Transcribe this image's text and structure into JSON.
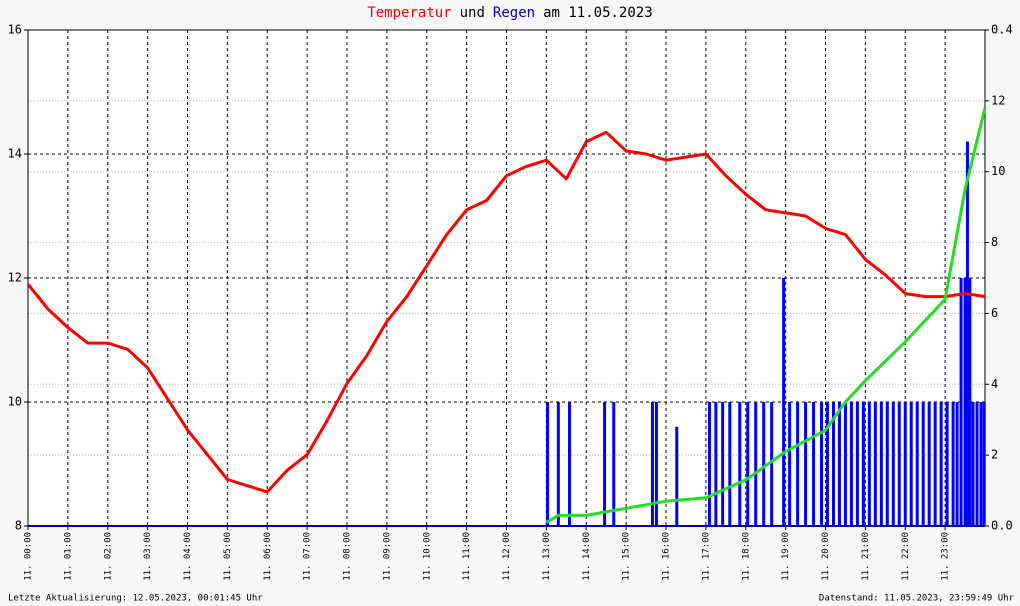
{
  "chart_data": {
    "type": "line",
    "title_parts": [
      {
        "text": "Temperatur",
        "color": "#ff0000"
      },
      {
        "text": "und",
        "color": "#000000"
      },
      {
        "text": "Regen",
        "color": "#0000aa"
      },
      {
        "text": "am 11.05.2023",
        "color": "#000000"
      }
    ],
    "xlim": [
      0,
      24
    ],
    "xticks": [
      {
        "value": 0,
        "label": "11. 00:00"
      },
      {
        "value": 1,
        "label": "11. 01:00"
      },
      {
        "value": 2,
        "label": "11. 02:00"
      },
      {
        "value": 3,
        "label": "11. 03:00"
      },
      {
        "value": 4,
        "label": "11. 04:00"
      },
      {
        "value": 5,
        "label": "11. 05:00"
      },
      {
        "value": 6,
        "label": "11. 06:00"
      },
      {
        "value": 7,
        "label": "11. 07:00"
      },
      {
        "value": 8,
        "label": "11. 08:00"
      },
      {
        "value": 9,
        "label": "11. 09:00"
      },
      {
        "value": 10,
        "label": "11. 10:00"
      },
      {
        "value": 11,
        "label": "11. 11:00"
      },
      {
        "value": 12,
        "label": "11. 12:00"
      },
      {
        "value": 13,
        "label": "11. 13:00"
      },
      {
        "value": 14,
        "label": "11. 14:00"
      },
      {
        "value": 15,
        "label": "11. 15:00"
      },
      {
        "value": 16,
        "label": "11. 16:00"
      },
      {
        "value": 17,
        "label": "11. 17:00"
      },
      {
        "value": 18,
        "label": "11. 18:00"
      },
      {
        "value": 19,
        "label": "11. 19:00"
      },
      {
        "value": 20,
        "label": "11. 20:00"
      },
      {
        "value": 21,
        "label": "11. 21:00"
      },
      {
        "value": 22,
        "label": "11. 22:00"
      },
      {
        "value": 23,
        "label": "11. 23:00"
      }
    ],
    "ylim": [
      8,
      16
    ],
    "yticks": [
      8,
      10,
      12,
      14,
      16
    ],
    "y2lim": [
      0,
      14
    ],
    "y2ticks": [
      2,
      4,
      6,
      8,
      10,
      12
    ],
    "y3lim": [
      0,
      0.4
    ],
    "y3ticks": [
      {
        "value": 0,
        "label": "0.0"
      },
      {
        "value": 0.4,
        "label": "0.4"
      }
    ],
    "grid": true,
    "series": [
      {
        "type": "line",
        "axis": "y",
        "color": "#ff0000",
        "x": [
          0,
          0.5,
          1,
          1.5,
          2,
          2.5,
          3,
          3.5,
          4,
          4.5,
          5,
          5.5,
          6,
          6.5,
          7,
          7.5,
          8,
          8.5,
          9,
          9.5,
          10,
          10.5,
          11,
          11.5,
          12,
          12.5,
          13,
          13.5,
          14,
          14.5,
          15,
          15.5,
          16,
          16.5,
          17,
          17.5,
          18,
          18.5,
          19,
          19.5,
          20,
          20.5,
          21,
          21.5,
          22,
          22.5,
          23,
          23.5,
          24
        ],
        "values": [
          11.9,
          11.5,
          11.2,
          10.95,
          10.95,
          10.85,
          10.55,
          10.05,
          9.55,
          9.15,
          8.75,
          8.65,
          8.55,
          8.9,
          9.15,
          9.7,
          10.3,
          10.75,
          11.3,
          11.7,
          12.2,
          12.7,
          13.1,
          13.25,
          13.65,
          13.8,
          13.9,
          13.6,
          14.2,
          14.35,
          14.05,
          14.0,
          13.9,
          13.95,
          14.0,
          13.65,
          13.35,
          13.1,
          13.05,
          13.0,
          12.8,
          12.7,
          12.3,
          12.05,
          11.75,
          11.7,
          11.7,
          11.75,
          11.7
        ]
      },
      {
        "type": "bar",
        "axis": "y3",
        "color": "#0000ff",
        "x": [
          13.03,
          13.3,
          13.58,
          14.46,
          14.69,
          15.66,
          15.76,
          16.27,
          17.09,
          17.25,
          17.42,
          17.6,
          17.85,
          18.05,
          18.25,
          18.45,
          18.65,
          18.95,
          19.1,
          19.3,
          19.5,
          19.7,
          19.9,
          20.05,
          20.2,
          20.35,
          20.5,
          20.65,
          20.8,
          20.95,
          21.1,
          21.25,
          21.4,
          21.55,
          21.7,
          21.85,
          22.0,
          22.15,
          22.3,
          22.45,
          22.6,
          22.75,
          22.9,
          23.05,
          23.2,
          23.3,
          23.4,
          23.5,
          23.56,
          23.62,
          23.7,
          23.8,
          23.9,
          23.98
        ],
        "values": [
          0.1,
          0.1,
          0.1,
          0.1,
          0.1,
          0.1,
          0.1,
          0.08,
          0.1,
          0.1,
          0.1,
          0.1,
          0.1,
          0.1,
          0.1,
          0.1,
          0.1,
          0.2,
          0.1,
          0.1,
          0.1,
          0.1,
          0.1,
          0.1,
          0.1,
          0.1,
          0.1,
          0.1,
          0.1,
          0.1,
          0.1,
          0.1,
          0.1,
          0.1,
          0.1,
          0.1,
          0.1,
          0.1,
          0.1,
          0.1,
          0.1,
          0.1,
          0.1,
          0.1,
          0.1,
          0.1,
          0.2,
          0.2,
          0.31,
          0.2,
          0.1,
          0.1,
          0.1,
          0.1
        ]
      },
      {
        "type": "line",
        "axis": "y2",
        "color": "#22dd22",
        "x": [
          13,
          13.3,
          14,
          15,
          16,
          17,
          18,
          19,
          20,
          20.5,
          21,
          22,
          23,
          23.5,
          24
        ],
        "values": [
          0.1,
          0.3,
          0.3,
          0.5,
          0.7,
          0.8,
          1.3,
          2.1,
          2.7,
          3.5,
          4.1,
          5.2,
          6.4,
          9.5,
          11.8
        ]
      }
    ],
    "footer_left": "Letzte Aktualisierung: 12.05.2023, 00:01:45 Uhr",
    "footer_right": "Datenstand: 11.05.2023, 23:59:49 Uhr"
  }
}
